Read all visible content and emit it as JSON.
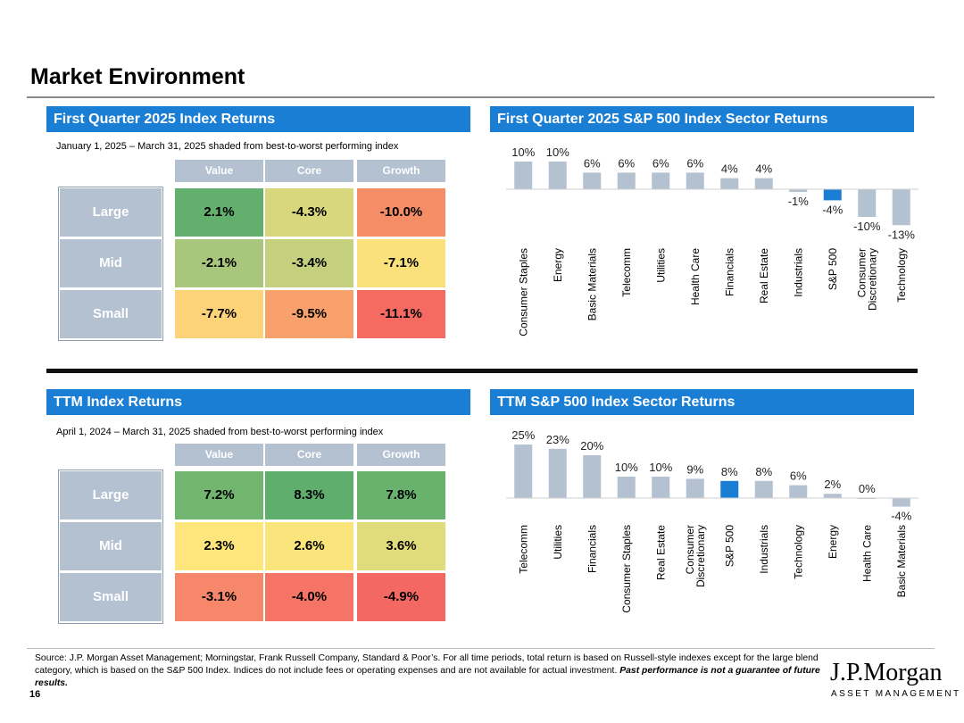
{
  "page": {
    "title": "Market Environment",
    "page_number": "16",
    "source_text": "Source: J.P. Morgan Asset Management; Morningstar, Frank Russell Company, Standard & Poor’s. For all time periods, total return is based on Russell-style indexes except for the large blend category, which is based on the S&P 500 Index. Indices do not include fees or operating expenses and are not available for actual investment.",
    "disclaimer": "Past performance is not a guarantee of future results.",
    "logo_text": "J.P.Morgan",
    "logo_sub": "ASSET MANAGEMENT"
  },
  "colors": {
    "header_blue": "#1a7fd4",
    "bar_gray": "#b3c1d1",
    "bar_highlight": "#1a7fd4"
  },
  "q1_grid": {
    "title": "First Quarter 2025 Index Returns",
    "note": "January 1, 2025 – March 31, 2025 shaded from best-to-worst performing index",
    "cols": [
      "Value",
      "Core",
      "Growth"
    ],
    "rows": [
      {
        "label": "Large",
        "cells": [
          {
            "value": "2.1%",
            "color": "#63b06e"
          },
          {
            "value": "-4.3%",
            "color": "#d8d77b"
          },
          {
            "value": "-10.0%",
            "color": "#f58e67"
          }
        ]
      },
      {
        "label": "Mid",
        "cells": [
          {
            "value": "-2.1%",
            "color": "#a8c77c"
          },
          {
            "value": "-3.4%",
            "color": "#c4d07e"
          },
          {
            "value": "-7.1%",
            "color": "#fbe17c"
          }
        ]
      },
      {
        "label": "Small",
        "cells": [
          {
            "value": "-7.7%",
            "color": "#fdd37a"
          },
          {
            "value": "-9.5%",
            "color": "#f8a16c"
          },
          {
            "value": "-11.1%",
            "color": "#f56b62"
          }
        ]
      }
    ]
  },
  "ttm_grid": {
    "title": "TTM Index Returns",
    "note": "April 1, 2024 – March 31, 2025 shaded from best-to-worst performing index",
    "cols": [
      "Value",
      "Core",
      "Growth"
    ],
    "rows": [
      {
        "label": "Large",
        "cells": [
          {
            "value": "7.2%",
            "color": "#71b56f"
          },
          {
            "value": "8.3%",
            "color": "#5fae6d"
          },
          {
            "value": "7.8%",
            "color": "#68b26e"
          }
        ]
      },
      {
        "label": "Mid",
        "cells": [
          {
            "value": "2.3%",
            "color": "#fee67d"
          },
          {
            "value": "2.6%",
            "color": "#fae47c"
          },
          {
            "value": "3.6%",
            "color": "#e1dc7b"
          }
        ]
      },
      {
        "label": "Small",
        "cells": [
          {
            "value": "-3.1%",
            "color": "#f7876a"
          },
          {
            "value": "-4.0%",
            "color": "#f57465"
          },
          {
            "value": "-4.9%",
            "color": "#f46863"
          }
        ]
      }
    ]
  },
  "chart_data": [
    {
      "type": "bar",
      "title": "First Quarter 2025 S&P 500 Index Sector Returns",
      "categories": [
        "Consumer Staples",
        "Energy",
        "Basic Materials",
        "Telecomm",
        "Utilities",
        "Health Care",
        "Financials",
        "Real Estate",
        "Industrials",
        "S&P 500",
        "Consumer Discretionary",
        "Technology"
      ],
      "category_lines": [
        [
          "Consumer Staples"
        ],
        [
          "Energy"
        ],
        [
          "Basic Materials"
        ],
        [
          "Telecomm"
        ],
        [
          "Utilities"
        ],
        [
          "Health Care"
        ],
        [
          "Financials"
        ],
        [
          "Real Estate"
        ],
        [
          "Industrials"
        ],
        [
          "S&P 500"
        ],
        [
          "Consumer",
          "Discretionary"
        ],
        [
          "Technology"
        ]
      ],
      "values": [
        10,
        10,
        6,
        6,
        6,
        6,
        4,
        4,
        -1,
        -4,
        -10,
        -13
      ],
      "labels": [
        "10%",
        "10%",
        "6%",
        "6%",
        "6%",
        "6%",
        "4%",
        "4%",
        "-1%",
        "-4%",
        "-10%",
        "-13%"
      ],
      "highlight": "S&P 500",
      "xlabel": "",
      "ylabel": "",
      "grid": false
    },
    {
      "type": "bar",
      "title": "TTM S&P 500 Index Sector Returns",
      "categories": [
        "Telecomm",
        "Utilities",
        "Financials",
        "Consumer Staples",
        "Real Estate",
        "Consumer Discretionary",
        "S&P 500",
        "Industrials",
        "Technology",
        "Energy",
        "Health Care",
        "Basic Materials"
      ],
      "category_lines": [
        [
          "Telecomm"
        ],
        [
          "Utilities"
        ],
        [
          "Financials"
        ],
        [
          "Consumer Staples"
        ],
        [
          "Real Estate"
        ],
        [
          "Consumer",
          "Discretionary"
        ],
        [
          "S&P 500"
        ],
        [
          "Industrials"
        ],
        [
          "Technology"
        ],
        [
          "Energy"
        ],
        [
          "Health Care"
        ],
        [
          "Basic Materials"
        ]
      ],
      "values": [
        25,
        23,
        20,
        10,
        10,
        9,
        8,
        8,
        6,
        2,
        0,
        -4
      ],
      "labels": [
        "25%",
        "23%",
        "20%",
        "10%",
        "10%",
        "9%",
        "8%",
        "8%",
        "6%",
        "2%",
        "0%",
        "-4%"
      ],
      "highlight": "S&P 500",
      "xlabel": "",
      "ylabel": "",
      "grid": false
    }
  ]
}
